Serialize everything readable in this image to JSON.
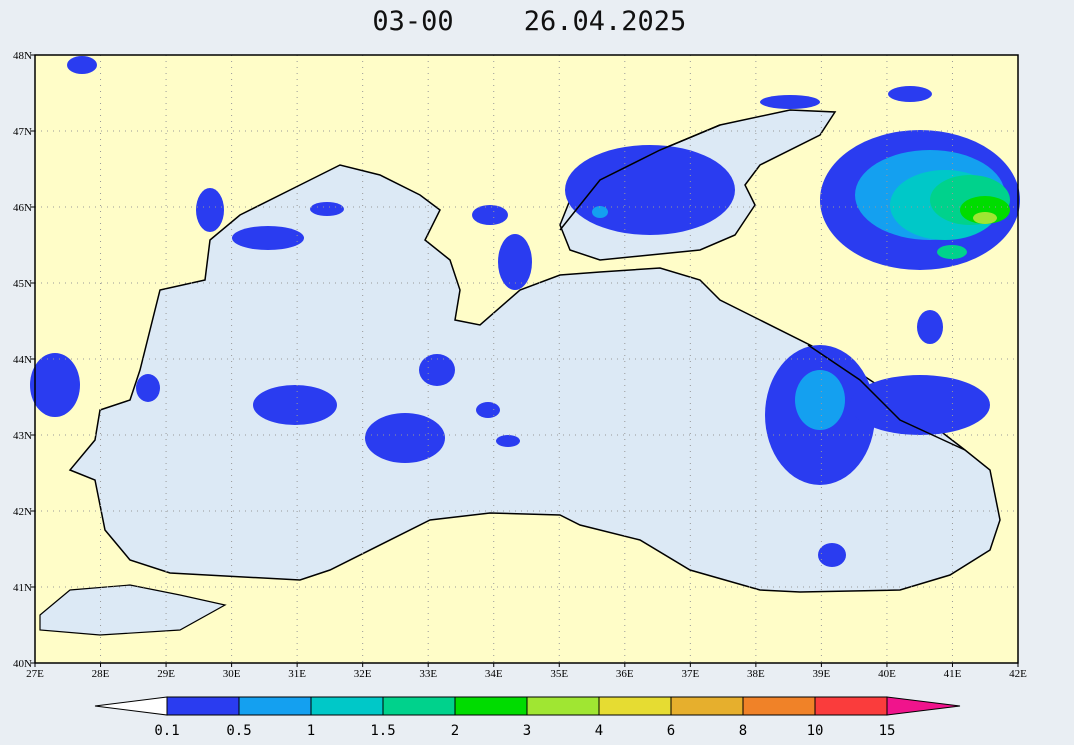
{
  "map": {
    "title": "03-00",
    "date": "26.04.2025",
    "xlim": [
      27,
      42
    ],
    "ylim": [
      40,
      48
    ],
    "lon_ticks": [
      {
        "value": 27,
        "label": "27E"
      },
      {
        "value": 28,
        "label": "28E"
      },
      {
        "value": 29,
        "label": "29E"
      },
      {
        "value": 30,
        "label": "30E"
      },
      {
        "value": 31,
        "label": "31E"
      },
      {
        "value": 32,
        "label": "32E"
      },
      {
        "value": 33,
        "label": "33E"
      },
      {
        "value": 34,
        "label": "34E"
      },
      {
        "value": 35,
        "label": "35E"
      },
      {
        "value": 36,
        "label": "36E"
      },
      {
        "value": 37,
        "label": "37E"
      },
      {
        "value": 38,
        "label": "38E"
      },
      {
        "value": 39,
        "label": "39E"
      },
      {
        "value": 40,
        "label": "40E"
      },
      {
        "value": 41,
        "label": "41E"
      },
      {
        "value": 42,
        "label": "42E"
      }
    ],
    "lat_ticks": [
      {
        "value": 40,
        "label": "40N"
      },
      {
        "value": 41,
        "label": "41N"
      },
      {
        "value": 42,
        "label": "42N"
      },
      {
        "value": 43,
        "label": "43N"
      },
      {
        "value": 44,
        "label": "44N"
      },
      {
        "value": 45,
        "label": "45N"
      },
      {
        "value": 46,
        "label": "46N"
      },
      {
        "value": 47,
        "label": "47N"
      },
      {
        "value": 48,
        "label": "48N"
      }
    ],
    "colorbar": {
      "levels": [
        0.1,
        0.5,
        1,
        1.5,
        2,
        3,
        4,
        6,
        8,
        10,
        15
      ],
      "colors": [
        "#ffffff",
        "#2a3cf0",
        "#14a0f0",
        "#00c8c8",
        "#00d28c",
        "#00dc00",
        "#a0e632",
        "#e6dc32",
        "#e6af2d",
        "#f08228",
        "#fa3c3c",
        "#f0148c"
      ]
    }
  }
}
